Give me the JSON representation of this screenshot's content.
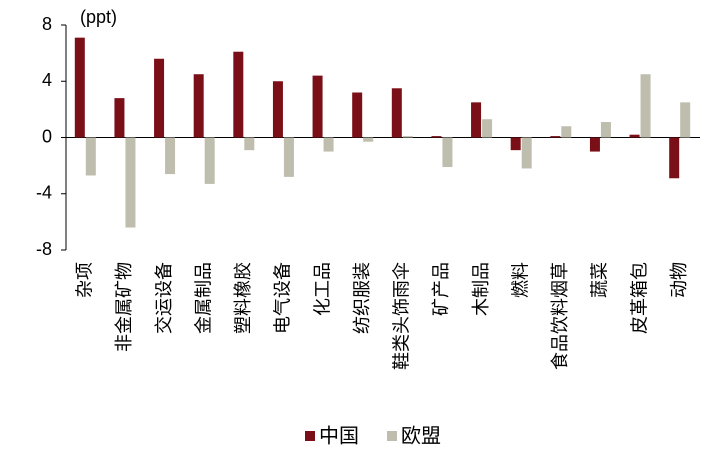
{
  "chart_data": {
    "type": "bar",
    "y_label": "(ppt)",
    "categories": [
      "杂项",
      "非金属矿物",
      "交运设备",
      "金属制品",
      "塑料橡胶",
      "电气设备",
      "化工品",
      "纺织服装",
      "鞋类头饰雨伞",
      "矿产品",
      "木制品",
      "燃料",
      "食品饮料烟草",
      "蔬菜",
      "皮革箱包",
      "动物"
    ],
    "series": [
      {
        "name": "中国",
        "color": "#7b0f17",
        "values": [
          7.1,
          2.8,
          5.6,
          4.5,
          6.1,
          4.0,
          4.4,
          3.2,
          3.5,
          0.1,
          2.5,
          -0.9,
          0.1,
          -1.0,
          0.2,
          -2.9
        ]
      },
      {
        "name": "欧盟",
        "color": "#bfbdae",
        "values": [
          -2.7,
          -6.4,
          -2.6,
          -3.3,
          -0.9,
          -2.8,
          -1.0,
          -0.3,
          0.1,
          -2.1,
          1.3,
          -2.2,
          0.8,
          1.1,
          4.5,
          2.5
        ]
      }
    ],
    "ylim": [
      -8,
      8
    ],
    "yticks": [
      8,
      4,
      0,
      -4,
      -8
    ],
    "grid": false,
    "legend": "bottom"
  }
}
